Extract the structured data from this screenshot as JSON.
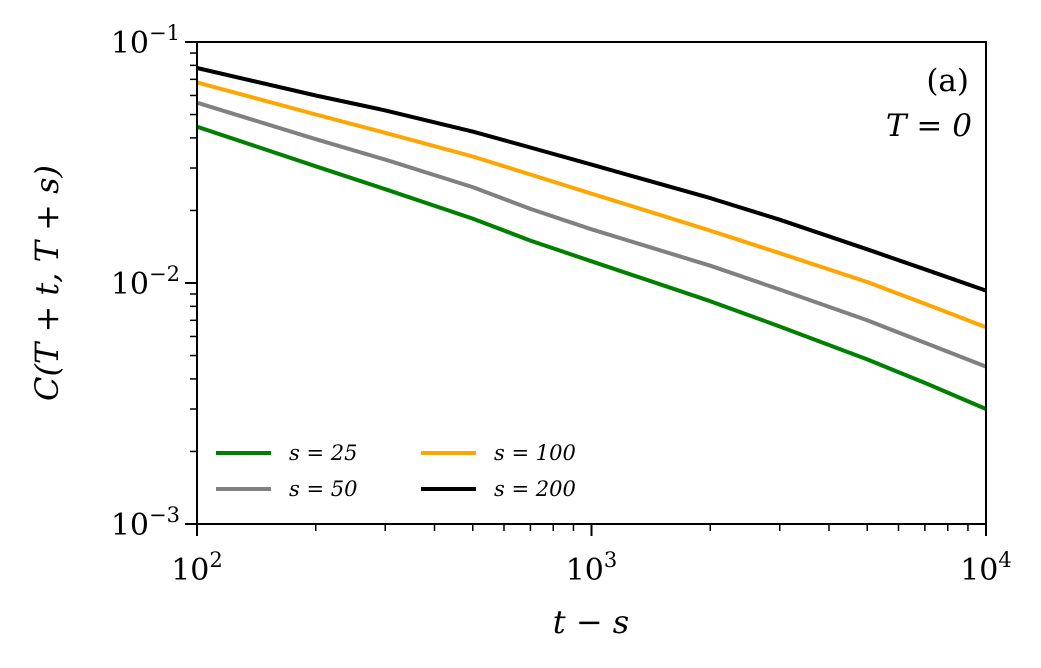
{
  "chart_data": {
    "type": "line",
    "xscale": "log",
    "yscale": "log",
    "xlim": [
      100,
      10000
    ],
    "ylim": [
      0.001,
      0.1
    ],
    "xlabel": "t − s",
    "ylabel": "C(T + t, T + s)",
    "x_ticks": [
      {
        "value": 100,
        "base": "10",
        "exp": "2"
      },
      {
        "value": 1000,
        "base": "10",
        "exp": "3"
      },
      {
        "value": 10000,
        "base": "10",
        "exp": "4"
      }
    ],
    "y_ticks": [
      {
        "value": 0.001,
        "base": "10",
        "exp": "−3"
      },
      {
        "value": 0.01,
        "base": "10",
        "exp": "−2"
      },
      {
        "value": 0.1,
        "base": "10",
        "exp": "−1"
      }
    ],
    "annotations": {
      "panel": "(a)",
      "temperature": "T = 0"
    },
    "grid": false,
    "legend_position": "lower-left",
    "legend_columns": 2,
    "x": [
      100,
      200,
      300,
      500,
      700,
      1000,
      2000,
      3000,
      5000,
      7000,
      10000
    ],
    "series": [
      {
        "name": "s = 25",
        "color": "#008000",
        "values": [
          0.0445,
          0.0305,
          0.0245,
          0.0185,
          0.015,
          0.0123,
          0.0084,
          0.0066,
          0.00482,
          0.00385,
          0.003
        ]
      },
      {
        "name": "s = 50",
        "color": "#808080",
        "values": [
          0.056,
          0.0395,
          0.0325,
          0.025,
          0.0203,
          0.0167,
          0.0118,
          0.0094,
          0.007,
          0.00565,
          0.0045
        ]
      },
      {
        "name": "s = 100",
        "color": "#ffa500",
        "values": [
          0.068,
          0.05,
          0.042,
          0.0335,
          0.0282,
          0.0235,
          0.0165,
          0.0133,
          0.0101,
          0.0082,
          0.00655
        ]
      },
      {
        "name": "s = 200",
        "color": "#000000",
        "values": [
          0.078,
          0.06,
          0.052,
          0.0425,
          0.0365,
          0.031,
          0.0225,
          0.0183,
          0.0138,
          0.0114,
          0.0093
        ]
      }
    ]
  }
}
